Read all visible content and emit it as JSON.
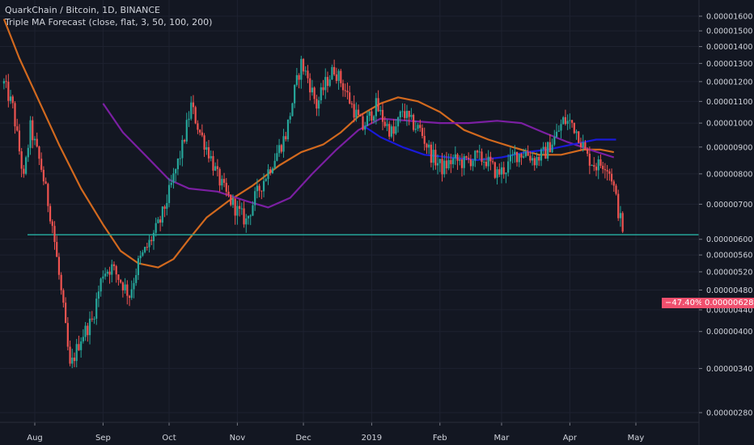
{
  "header": {
    "title": "QuarkChain / Bitcoin, 1D, BINANCE",
    "indicator": "Triple MA Forecast (close, flat, 3, 50, 100, 200)"
  },
  "last_price": {
    "change": "−47.40%",
    "price": "0.00000628"
  },
  "colors": {
    "background": "#131722",
    "grid": "#1e2230",
    "up": "#26a69a",
    "down": "#ef5350",
    "ma_orange": "#d2691e",
    "ma_purple": "#7b1fa2",
    "ma_blue": "#1a1ad8",
    "support_line": "#26a69a",
    "badge": "#f0506e"
  },
  "chart_data": {
    "type": "candlestick",
    "y_scale": "log",
    "ylim": [
      2.65e-06,
      1.7e-05
    ],
    "y_ticks": [
      "0.00001600",
      "0.00001500",
      "0.00001400",
      "0.00001300",
      "0.00001200",
      "0.00001100",
      "0.00001000",
      "0.00000900",
      "0.00000800",
      "0.00000700",
      "0.00000600",
      "0.00000560",
      "0.00000520",
      "0.00000480",
      "0.00000440",
      "0.00000400",
      "0.00000340",
      "0.00000280"
    ],
    "x_ticks": [
      "Aug",
      "Sep",
      "Oct",
      "Nov",
      "Dec",
      "2019",
      "Feb",
      "Mar",
      "Apr",
      "May"
    ],
    "support_level": 6.12e-06,
    "close_path": [
      [
        "2018-07-18",
        1.19e-05
      ],
      [
        "2018-07-22",
        1.07e-05
      ],
      [
        "2018-07-27",
        7.8e-06
      ],
      [
        "2018-07-30",
        9.8e-06
      ],
      [
        "2018-08-04",
        8.2e-06
      ],
      [
        "2018-08-09",
        6.4e-06
      ],
      [
        "2018-08-14",
        4.4e-06
      ],
      [
        "2018-08-17",
        3.4e-06
      ],
      [
        "2018-08-22",
        3.9e-06
      ],
      [
        "2018-08-27",
        4.2e-06
      ],
      [
        "2018-09-01",
        5.2e-06
      ],
      [
        "2018-09-05",
        5.3e-06
      ],
      [
        "2018-09-09",
        5e-06
      ],
      [
        "2018-09-13",
        4.7e-06
      ],
      [
        "2018-09-17",
        5.4e-06
      ],
      [
        "2018-09-22",
        5.9e-06
      ],
      [
        "2018-09-27",
        6.5e-06
      ],
      [
        "2018-10-02",
        7.6e-06
      ],
      [
        "2018-10-07",
        9e-06
      ],
      [
        "2018-10-11",
        1.08e-05
      ],
      [
        "2018-10-15",
        9.6e-06
      ],
      [
        "2018-10-19",
        8.8e-06
      ],
      [
        "2018-10-23",
        7.9e-06
      ],
      [
        "2018-10-27",
        7.3e-06
      ],
      [
        "2018-11-01",
        6.8e-06
      ],
      [
        "2018-11-05",
        6.5e-06
      ],
      [
        "2018-11-09",
        7.2e-06
      ],
      [
        "2018-11-13",
        7.8e-06
      ],
      [
        "2018-11-18",
        8.6e-06
      ],
      [
        "2018-11-23",
        9.5e-06
      ],
      [
        "2018-11-27",
        1.15e-05
      ],
      [
        "2018-11-30",
        1.3e-05
      ],
      [
        "2018-12-03",
        1.22e-05
      ],
      [
        "2018-12-07",
        1.08e-05
      ],
      [
        "2018-12-11",
        1.19e-05
      ],
      [
        "2018-12-15",
        1.27e-05
      ],
      [
        "2018-12-19",
        1.18e-05
      ],
      [
        "2018-12-23",
        1.08e-05
      ],
      [
        "2018-12-28",
        9.8e-06
      ],
      [
        "2019-01-03",
        1.08e-05
      ],
      [
        "2019-01-07",
        1e-05
      ],
      [
        "2019-01-11",
        9.5e-06
      ],
      [
        "2019-01-15",
        1.06e-05
      ],
      [
        "2019-01-18",
        1.01e-05
      ],
      [
        "2019-01-23",
        9.7e-06
      ],
      [
        "2019-01-28",
        8.7e-06
      ],
      [
        "2019-02-02",
        8.2e-06
      ],
      [
        "2019-02-07",
        8.5e-06
      ],
      [
        "2019-02-12",
        8.4e-06
      ],
      [
        "2019-02-17",
        8.6e-06
      ],
      [
        "2019-02-22",
        8.5e-06
      ],
      [
        "2019-02-27",
        8e-06
      ],
      [
        "2019-03-03",
        8.2e-06
      ],
      [
        "2019-03-07",
        8.7e-06
      ],
      [
        "2019-03-12",
        8.8e-06
      ],
      [
        "2019-03-16",
        8.5e-06
      ],
      [
        "2019-03-21",
        8.8e-06
      ],
      [
        "2019-03-26",
        9.5e-06
      ],
      [
        "2019-03-29",
        1.01e-05
      ],
      [
        "2019-04-02",
        1e-05
      ],
      [
        "2019-04-05",
        9.5e-06
      ],
      [
        "2019-04-09",
        8.6e-06
      ],
      [
        "2019-04-13",
        8.3e-06
      ],
      [
        "2019-04-17",
        8.4e-06
      ],
      [
        "2019-04-20",
        7.9e-06
      ],
      [
        "2019-04-23",
        6.8e-06
      ],
      [
        "2019-04-25",
        6.28e-06
      ]
    ],
    "series": [
      {
        "values": [
          [
            "2018-07-18",
            1.58e-05
          ],
          [
            "2018-07-25",
            1.33e-05
          ],
          [
            "2018-08-03",
            1.1e-05
          ],
          [
            "2018-08-12",
            9.1e-06
          ],
          [
            "2018-08-22",
            7.5e-06
          ],
          [
            "2018-09-01",
            6.4e-06
          ],
          [
            "2018-09-09",
            5.7e-06
          ],
          [
            "2018-09-17",
            5.4e-06
          ],
          [
            "2018-09-26",
            5.3e-06
          ],
          [
            "2018-10-03",
            5.5e-06
          ],
          [
            "2018-10-10",
            6e-06
          ],
          [
            "2018-10-18",
            6.6e-06
          ],
          [
            "2018-10-28",
            7.1e-06
          ],
          [
            "2018-11-08",
            7.6e-06
          ],
          [
            "2018-11-20",
            8.3e-06
          ],
          [
            "2018-11-30",
            8.8e-06
          ],
          [
            "2018-12-10",
            9.1e-06
          ],
          [
            "2018-12-18",
            9.6e-06
          ],
          [
            "2018-12-26",
            1.03e-05
          ],
          [
            "2019-01-05",
            1.09e-05
          ],
          [
            "2019-01-13",
            1.12e-05
          ],
          [
            "2019-01-22",
            1.1e-05
          ],
          [
            "2019-02-01",
            1.05e-05
          ],
          [
            "2019-02-12",
            9.7e-06
          ],
          [
            "2019-02-23",
            9.3e-06
          ],
          [
            "2019-03-06",
            9e-06
          ],
          [
            "2019-03-18",
            8.7e-06
          ],
          [
            "2019-03-28",
            8.7e-06
          ],
          [
            "2019-04-07",
            8.9e-06
          ],
          [
            "2019-04-15",
            8.9e-06
          ],
          [
            "2019-04-21",
            8.8e-06
          ]
        ]
      },
      {
        "values": [
          [
            "2018-09-01",
            1.09e-05
          ],
          [
            "2018-09-10",
            9.6e-06
          ],
          [
            "2018-09-20",
            8.7e-06
          ],
          [
            "2018-10-01",
            7.8e-06
          ],
          [
            "2018-10-10",
            7.5e-06
          ],
          [
            "2018-10-23",
            7.4e-06
          ],
          [
            "2018-11-05",
            7.1e-06
          ],
          [
            "2018-11-15",
            6.9e-06
          ],
          [
            "2018-11-25",
            7.2e-06
          ],
          [
            "2018-12-05",
            8e-06
          ],
          [
            "2018-12-16",
            8.9e-06
          ],
          [
            "2018-12-26",
            9.7e-06
          ],
          [
            "2019-01-05",
            1.02e-05
          ],
          [
            "2019-01-18",
            1.01e-05
          ],
          [
            "2019-02-01",
            1e-05
          ],
          [
            "2019-02-14",
            1e-05
          ],
          [
            "2019-02-27",
            1.01e-05
          ],
          [
            "2019-03-10",
            1e-05
          ],
          [
            "2019-03-20",
            9.6e-06
          ],
          [
            "2019-03-31",
            9.2e-06
          ],
          [
            "2019-04-10",
            8.9e-06
          ],
          [
            "2019-04-21",
            8.6e-06
          ]
        ]
      },
      {
        "values": [
          [
            "2018-12-28",
            9.9e-06
          ],
          [
            "2019-01-05",
            9.4e-06
          ],
          [
            "2019-01-15",
            9e-06
          ],
          [
            "2019-01-25",
            8.7e-06
          ],
          [
            "2019-02-05",
            8.6e-06
          ],
          [
            "2019-02-18",
            8.5e-06
          ],
          [
            "2019-03-01",
            8.6e-06
          ],
          [
            "2019-03-12",
            8.8e-06
          ],
          [
            "2019-03-22",
            8.9e-06
          ],
          [
            "2019-04-02",
            9.1e-06
          ],
          [
            "2019-04-13",
            9.3e-06
          ],
          [
            "2019-04-22",
            9.3e-06
          ]
        ]
      }
    ]
  }
}
